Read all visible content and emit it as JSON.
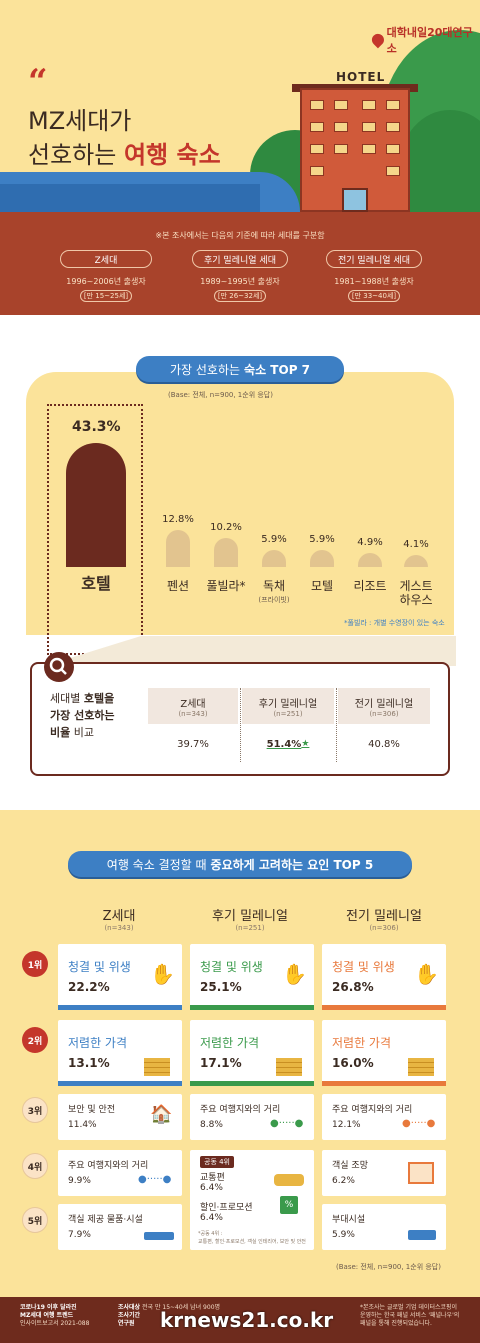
{
  "hero": {
    "quote_mark": "“",
    "title_line1": "MZ세대가",
    "title_line2_prefix": "선호하는",
    "title_line2_highlight": "여행 숙소",
    "logo": "대학내일20대연구소",
    "hotel_sign": "HOTEL"
  },
  "generations": {
    "note": "※본 조사에서는 다음의 기준에 따라 세대를 구분함",
    "items": [
      {
        "name": "Z세대",
        "range": "1996~2006년 출생자",
        "age": "[만 15~25세]"
      },
      {
        "name": "후기 밀레니얼 세대",
        "range": "1989~1995년 출생자",
        "age": "[만 26~32세]"
      },
      {
        "name": "전기 밀레니얼 세대",
        "range": "1981~1988년 출생자",
        "age": "[만 33~40세]"
      }
    ]
  },
  "top7": {
    "title_prefix": "가장 선호하는",
    "title_highlight": "숙소 TOP 7",
    "base": "(Base: 전체, n=900, 1순위 응답)",
    "footnote": "*풀빌라 : 개별 수영장이 있는 숙소"
  },
  "chart_data": {
    "type": "bar",
    "categories": [
      "호텔",
      "펜션",
      "풀빌라*",
      "독채",
      "모텔",
      "리조트",
      "게스트 하우스"
    ],
    "values": [
      43.3,
      12.8,
      10.2,
      5.9,
      5.9,
      4.9,
      4.1
    ],
    "value_labels": [
      "43.3%",
      "12.8%",
      "10.2%",
      "5.9%",
      "5.9%",
      "4.9%",
      "4.1%"
    ],
    "sub_labels": [
      "",
      "",
      "",
      "(프라이빗)",
      "",
      "",
      ""
    ],
    "title": "가장 선호하는 숙소 TOP 7"
  },
  "compare": {
    "title_l1_a": "세대별",
    "title_l1_b": "호텔을",
    "title_l2": "가장 선호하는",
    "title_l3_a": "비율",
    "title_l3_b": "비교",
    "cols": [
      {
        "name": "Z세대",
        "n": "(n=343)",
        "value": "39.7%"
      },
      {
        "name": "후기 밀레니얼",
        "n": "(n=251)",
        "value": "51.4%"
      },
      {
        "name": "전기 밀레니얼",
        "n": "(n=306)",
        "value": "40.8%"
      }
    ],
    "star": "★"
  },
  "factors": {
    "title_prefix": "여행 숙소 결정할 때",
    "title_highlight": "중요하게 고려하는 요인 TOP 5",
    "headers": [
      {
        "name": "Z세대",
        "n": "(n=343)"
      },
      {
        "name": "후기 밀레니얼",
        "n": "(n=251)"
      },
      {
        "name": "전기 밀레니얼",
        "n": "(n=306)"
      }
    ],
    "ranks": [
      "1위",
      "2위",
      "3위",
      "4위",
      "5위"
    ],
    "z": [
      {
        "label": "청결 및 위생",
        "value": "22.2%"
      },
      {
        "label": "저렴한 가격",
        "value": "13.1%"
      },
      {
        "label": "보안 및 안전",
        "value": "11.4%"
      },
      {
        "label": "주요 여행지와의 거리",
        "value": "9.9%"
      },
      {
        "label": "객실 제공 물품·시설",
        "value": "7.9%"
      }
    ],
    "late": [
      {
        "label": "청결 및 위생",
        "value": "25.1%"
      },
      {
        "label": "저렴한 가격",
        "value": "17.1%"
      },
      {
        "label": "주요 여행지와의 거리",
        "value": "8.8%"
      }
    ],
    "late_tie": {
      "badge": "공동 4위",
      "a_label": "교통편",
      "a_value": "6.4%",
      "b_label": "할인·프로모션",
      "b_value": "6.4%",
      "note": "*공동 4위 :",
      "note2": "교통편, 할인·프로모션, 객실 인테리어, 보안 및 안전"
    },
    "early": [
      {
        "label": "청결 및 위생",
        "value": "26.8%"
      },
      {
        "label": "저렴한 가격",
        "value": "16.0%"
      },
      {
        "label": "주요 여행지와의 거리",
        "value": "12.1%"
      },
      {
        "label": "객실 조망",
        "value": "6.2%"
      },
      {
        "label": "부대시설",
        "value": "5.9%"
      }
    ],
    "base": "(Base: 전체, n=900, 1순위 응답)"
  },
  "footer": {
    "left1": "코로나19 이후 달라진",
    "left2": "MZ세대 여행 트렌드",
    "left3": "인사이트보고서 2021-088",
    "mid_k1": "조사대상",
    "mid_v1": "전국 만 15~40세 남녀 900명",
    "mid_k2": "조사기간",
    "mid_k3": "연구원",
    "right1": "*본조사는 글로벌 기업 데이터스코핑이",
    "right2": "운영하는 한국 패널 서비스 '패널나우'의",
    "right3": "패널을 통해 진행되었습니다.",
    "watermark": "krnews21.co.kr"
  },
  "colors": {
    "accent": "#c4362b",
    "blue": "#3d7fc4",
    "brown": "#6b2a1f",
    "yellow": "#fbe39a",
    "green": "#3a9a4b",
    "orange": "#e8a33c"
  }
}
